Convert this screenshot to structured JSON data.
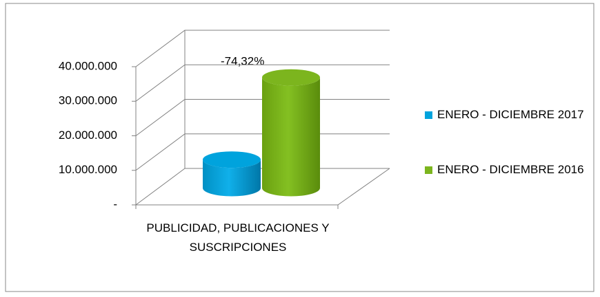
{
  "chart_data": {
    "type": "bar3d",
    "categories": [
      "PUBLICIDAD, PUBLICACIONES Y SUSCRIPCIONES"
    ],
    "series": [
      {
        "name": "ENERO - DICIEMBRE 2017",
        "color": "#00a3dd",
        "values": [
          8220000
        ]
      },
      {
        "name": "ENERO - DICIEMBRE 2016",
        "color": "#7cb51e",
        "values": [
          32000000
        ]
      }
    ],
    "annotations": [
      "-74,32%"
    ],
    "ylim": [
      0,
      40000000
    ],
    "yticks": [
      {
        "value": 0,
        "label": "-"
      },
      {
        "value": 10000000,
        "label": "10.000.000"
      },
      {
        "value": 20000000,
        "label": "20.000.000"
      },
      {
        "value": 30000000,
        "label": "30.000.000"
      },
      {
        "value": 40000000,
        "label": "40.000.000"
      }
    ],
    "grid": true,
    "legend": "right"
  }
}
